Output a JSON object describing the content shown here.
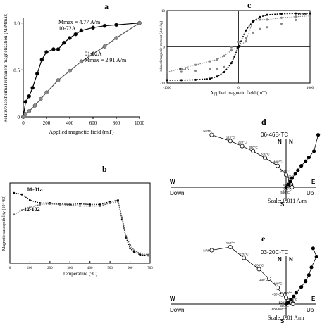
{
  "panel_labels": {
    "a": "a",
    "b": "b",
    "c": "c",
    "d": "d",
    "e": "e"
  },
  "chart_data": [
    {
      "id": "a",
      "type": "line",
      "title": "",
      "xlabel": "Applied magnetic field (mT)",
      "ylabel": "Relative isothermal remanent magnetization (M/Mmax)",
      "xlim": [
        0,
        1000
      ],
      "ylim": [
        0,
        1.05
      ],
      "xticks": [
        "0",
        "200",
        "400",
        "600",
        "800",
        "1000"
      ],
      "yticks": [
        "0",
        "0.5",
        "1.0"
      ],
      "series": [
        {
          "name": "10-72A",
          "note": "Mmax = 4.77 A/m",
          "marker": "filled",
          "x": [
            0,
            20,
            50,
            80,
            120,
            160,
            200,
            260,
            300,
            350,
            400,
            450,
            500,
            600,
            700,
            800,
            1000
          ],
          "y": [
            0,
            0.16,
            0.22,
            0.31,
            0.46,
            0.61,
            0.69,
            0.72,
            0.72,
            0.79,
            0.84,
            0.88,
            0.92,
            0.95,
            0.97,
            0.98,
            1.0
          ]
        },
        {
          "name": "01-02A",
          "note": "Mmax = 2.91 A/m",
          "marker": "open",
          "x": [
            0,
            20,
            50,
            100,
            150,
            200,
            300,
            400,
            500,
            600,
            700,
            800,
            1000
          ],
          "y": [
            0,
            0.03,
            0.06,
            0.12,
            0.19,
            0.26,
            0.39,
            0.49,
            0.59,
            0.67,
            0.75,
            0.84,
            1.0
          ]
        }
      ]
    },
    {
      "id": "b",
      "type": "scatter",
      "title": "",
      "xlabel": "Temperature (°C)",
      "ylabel": "Magnetic susceptibility (10⁻⁶SI)",
      "xlim": [
        0,
        700
      ],
      "xticks": [
        "0",
        "100",
        "200",
        "300",
        "400",
        "500",
        "600",
        "700"
      ],
      "series": [
        {
          "name": "01-01a",
          "x": [
            20,
            60,
            100,
            150,
            200,
            250,
            300,
            350,
            400,
            450,
            500,
            540,
            560,
            580,
            600,
            620,
            650,
            690
          ],
          "y": [
            0.92,
            0.9,
            0.82,
            0.78,
            0.78,
            0.77,
            0.76,
            0.77,
            0.76,
            0.76,
            0.8,
            0.82,
            0.55,
            0.3,
            0.15,
            0.1,
            0.06,
            0.05
          ]
        },
        {
          "name": "12-102",
          "x": [
            20,
            60,
            100,
            150,
            200,
            250,
            300,
            350,
            400,
            450,
            500,
            540,
            560,
            580,
            600,
            620,
            650,
            690
          ],
          "y": [
            0.62,
            0.68,
            0.72,
            0.76,
            0.77,
            0.76,
            0.75,
            0.74,
            0.74,
            0.74,
            0.78,
            0.8,
            0.58,
            0.32,
            0.2,
            0.12,
            0.08,
            0.06
          ]
        }
      ]
    },
    {
      "id": "c",
      "type": "scatter",
      "title": "",
      "xlabel": "Applied magnetic field (mT)",
      "ylabel": "Induced magnetic moment (Am²/kg)",
      "xlim": [
        -1000,
        1000
      ],
      "ylim": [
        -10,
        10
      ],
      "xticks": [
        "-1000",
        "0",
        "1000"
      ],
      "yticks": [
        "-10",
        "0",
        "10"
      ],
      "series": [
        {
          "name": "11-08",
          "x": [
            -1000,
            -800,
            -600,
            -400,
            -300,
            -200,
            -100,
            0,
            100,
            200,
            300,
            400,
            600,
            800,
            1000
          ],
          "y": [
            -9.2,
            -9.2,
            -9.1,
            -8.8,
            -8.2,
            -7.0,
            -4.5,
            0,
            4.5,
            7.0,
            8.2,
            8.8,
            9.1,
            9.2,
            9.2
          ]
        },
        {
          "name": "02-15",
          "x": [
            -1000,
            -800,
            -600,
            -400,
            -300,
            -200,
            -100,
            0,
            100,
            200,
            300,
            400,
            600,
            800,
            1000
          ],
          "y": [
            -7.0,
            -6.0,
            -5.0,
            -4.0,
            -3.5,
            -2.5,
            -1.0,
            0,
            1.5,
            7.0,
            7.5,
            7.5,
            8.0,
            8.3,
            8.5
          ]
        }
      ]
    },
    {
      "id": "d",
      "type": "scatter",
      "title": "06-46B-TC",
      "axis_labels": {
        "n": "N",
        "s": "S",
        "w": "W",
        "e": "E",
        "down": "Down",
        "up": "Up"
      },
      "scale": "Scale: 0.011 A/m",
      "steps": [
        "NRM",
        "120°C",
        "220°C",
        "300°C",
        "330°C",
        "400°C",
        "450°C",
        "490°C",
        "520°C",
        "550°C",
        "580°C"
      ],
      "horizontal_projection": {
        "x": [
          -0.88,
          -0.66,
          -0.52,
          -0.39,
          -0.25,
          -0.1,
          0.0,
          0.05,
          0.06,
          0.06,
          0.07
        ],
        "y": [
          0.93,
          0.82,
          0.73,
          0.64,
          0.52,
          0.38,
          0.22,
          0.12,
          0.05,
          0.02,
          0.0
        ]
      },
      "vertical_projection": {
        "x": [
          0.38,
          0.33,
          0.27,
          0.23,
          0.18,
          0.14,
          0.11,
          0.07,
          0.05,
          0.03,
          0.0
        ],
        "y": [
          0.93,
          0.64,
          0.53,
          0.46,
          0.38,
          0.3,
          0.24,
          0.16,
          0.1,
          0.05,
          0.0
        ]
      }
    },
    {
      "id": "e",
      "type": "scatter",
      "title": "03-20C-TC",
      "axis_labels": {
        "n": "N",
        "s": "S",
        "w": "W",
        "e": "E",
        "down": "Down",
        "up": "Up"
      },
      "scale": "Scale: 0.01 A/m",
      "steps": [
        "NRM",
        "150°C",
        "220°C",
        "300°C",
        "330°C",
        "400°C",
        "450°C",
        "490°C",
        "520°C",
        "550°C",
        "580°C",
        "600-680°C"
      ],
      "horizontal_projection": {
        "x": [
          -0.88,
          -0.66,
          -0.5,
          -0.32,
          -0.2,
          -0.1,
          -0.05,
          0.0,
          0.03,
          0.06,
          0.08,
          0.08
        ],
        "y": [
          0.85,
          0.9,
          0.73,
          0.55,
          0.4,
          0.26,
          0.15,
          0.1,
          0.05,
          0.02,
          0.01,
          0.0
        ]
      },
      "vertical_projection": {
        "x": [
          0.32,
          0.36,
          0.3,
          0.27,
          0.23,
          0.18,
          0.12,
          0.09,
          0.06,
          0.03,
          0.01,
          0.0
        ],
        "y": [
          0.88,
          0.75,
          0.58,
          0.46,
          0.36,
          0.27,
          0.18,
          0.12,
          0.07,
          0.03,
          0.01,
          0.0
        ]
      }
    }
  ]
}
